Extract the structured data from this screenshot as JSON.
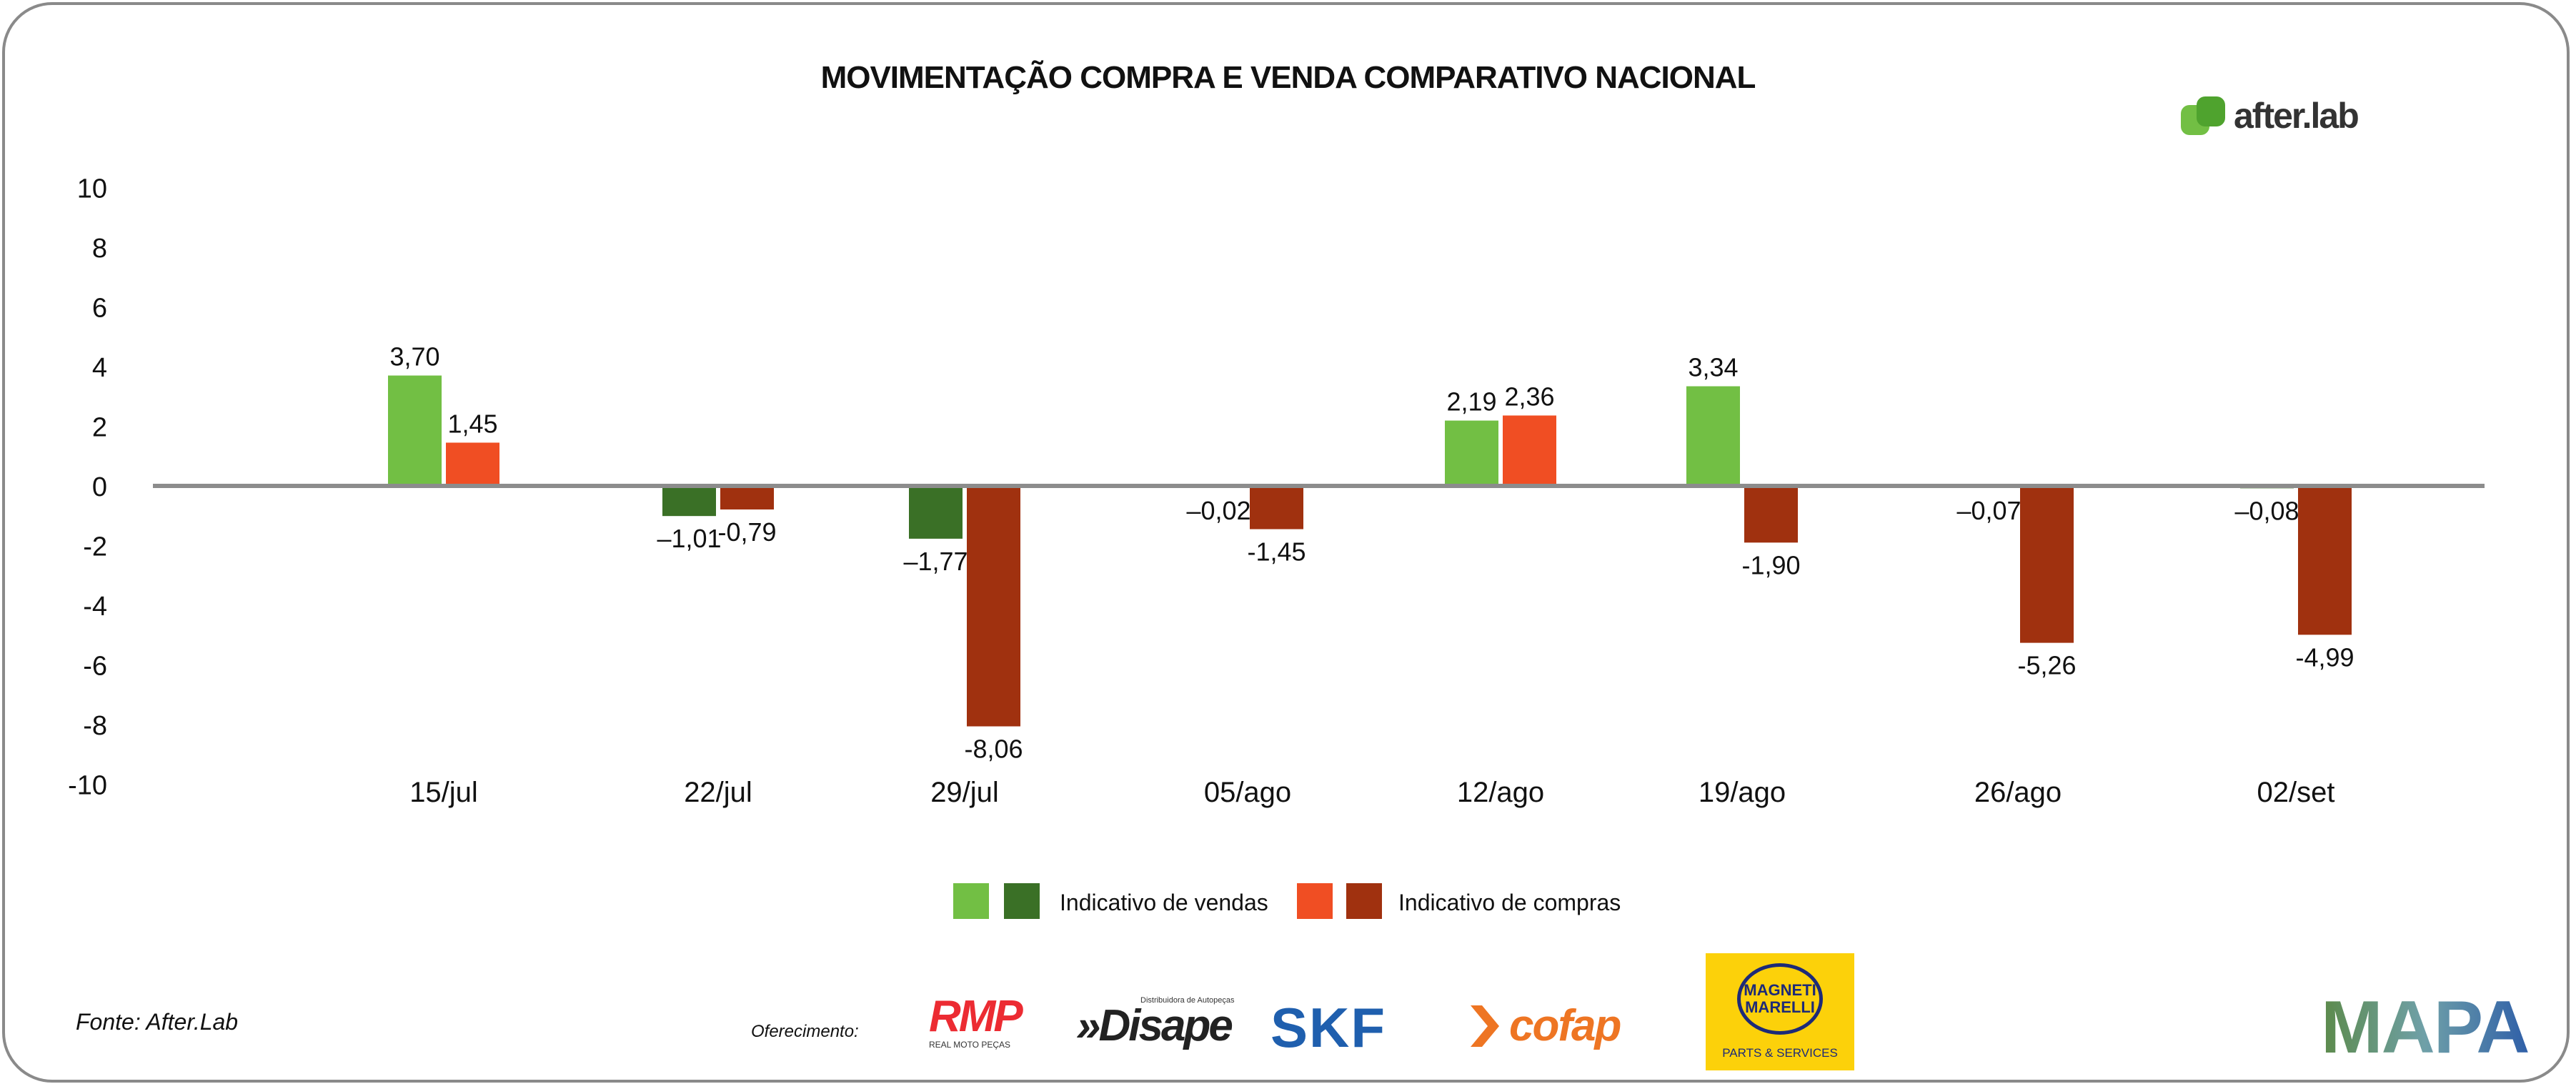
{
  "chart_data": {
    "type": "bar",
    "title": "MOVIMENTAÇÃO COMPRA E VENDA COMPARATIVO NACIONAL",
    "xlabel": "",
    "ylabel": "",
    "ylim": [
      -10,
      10
    ],
    "yticks": [
      "10",
      "8",
      "6",
      "4",
      "2",
      "0",
      "-2",
      "-4",
      "-6",
      "-8",
      "-10"
    ],
    "categories": [
      "15/jul",
      "22/jul",
      "29/jul",
      "05/ago",
      "12/ago",
      "19/ago",
      "26/ago",
      "02/set"
    ],
    "series": [
      {
        "name": "Indicativo de vendas",
        "values": [
          3.7,
          -1.01,
          -1.77,
          -0.02,
          2.19,
          3.34,
          -0.07,
          -0.08
        ],
        "labels": [
          "3,70",
          "–1,01",
          "–1,77",
          "–0,02",
          "2,19",
          "3,34",
          "–0,07",
          "–0,08"
        ],
        "color_positive": "#72BF44",
        "color_negative": "#3A7026"
      },
      {
        "name": "Indicativo de compras",
        "values": [
          1.45,
          -0.79,
          -8.06,
          -1.45,
          2.36,
          -1.9,
          -5.26,
          -4.99
        ],
        "labels": [
          "1,45",
          "-0,79",
          "-8,06",
          "-1,45",
          "2,36",
          "-1,90",
          "-5,26",
          "-4,99"
        ],
        "color_positive": "#F04E23",
        "color_negative": "#A0310F"
      }
    ],
    "grid": false,
    "legend_position": "bottom"
  },
  "source": "Fonte: After.Lab",
  "sponsor_label": "Oferecimento:",
  "logos": {
    "afterlab": "after.lab",
    "rmp": "RMP",
    "rmp_sub": "REAL MOTO PEÇAS",
    "disape": "»Disape",
    "disape_sub": "Distribuidora de Autopeças",
    "skf": "SKF",
    "cofap": "cofap",
    "magneti_1": "MAGNETI",
    "magneti_2": "MARELLI",
    "magneti_sub": "PARTS & SERVICES",
    "mapa": "MAPA"
  }
}
